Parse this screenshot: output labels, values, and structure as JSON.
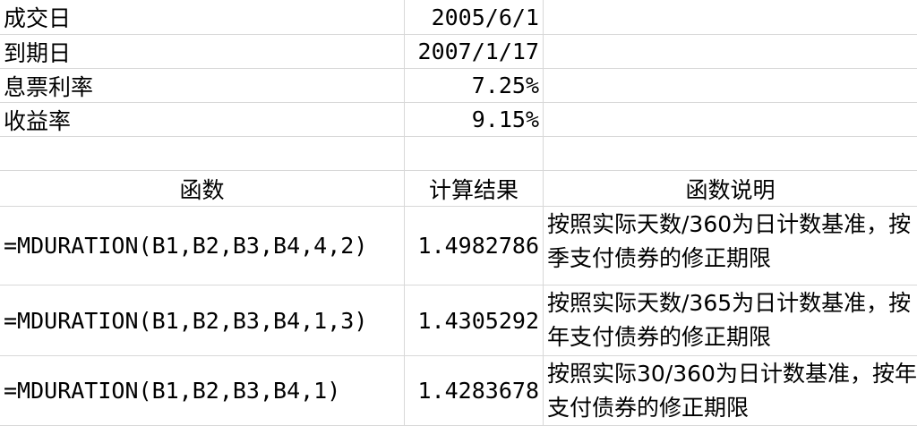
{
  "params": [
    {
      "label": "成交日",
      "value": "2005/6/1"
    },
    {
      "label": "到期日",
      "value": "2007/1/17"
    },
    {
      "label": "息票利率",
      "value": "7.25%"
    },
    {
      "label": "收益率",
      "value": "9.15%"
    }
  ],
  "headers": {
    "func": "函数",
    "result": "计算结果",
    "desc": "函数说明"
  },
  "rows": [
    {
      "formula": "=MDURATION(B1,B2,B3,B4,4,2)",
      "result": "1.4982786",
      "desc": "按照实际天数/360为日计数基准，按季支付债券的修正期限"
    },
    {
      "formula": "=MDURATION(B1,B2,B3,B4,1,3)",
      "result": "1.4305292",
      "desc": "按照实际天数/365为日计数基准，按年支付债券的修正期限"
    },
    {
      "formula": "=MDURATION(B1,B2,B3,B4,1)",
      "result": "1.4283678",
      "desc": "按照实际30/360为日计数基准，按年支付债券的修正期限"
    }
  ]
}
